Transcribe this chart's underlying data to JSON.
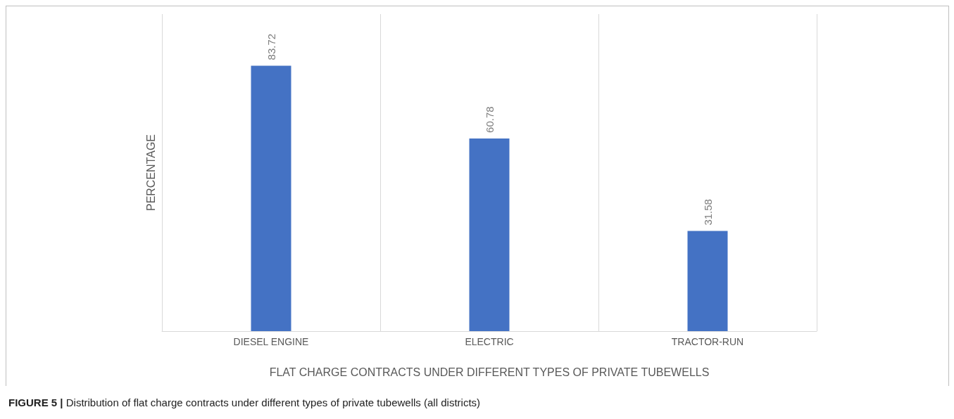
{
  "chart_data": {
    "type": "bar",
    "xlabel": "FLAT CHARGE CONTRACTS UNDER DIFFERENT TYPES OF PRIVATE TUBEWELLS",
    "ylabel": "PERCENTAGE",
    "categories": [
      "DIESEL ENGINE",
      "ELECTRIC",
      "TRACTOR-RUN"
    ],
    "values": [
      83.72,
      60.78,
      31.58
    ],
    "color": "#4472c4",
    "data_labels": true,
    "grid": "x",
    "tick_labels": "x",
    "annotations": [
      "FIGURE 5 | Distribution of flat charge contracts under different types of private tubewells (all districts)"
    ]
  }
}
